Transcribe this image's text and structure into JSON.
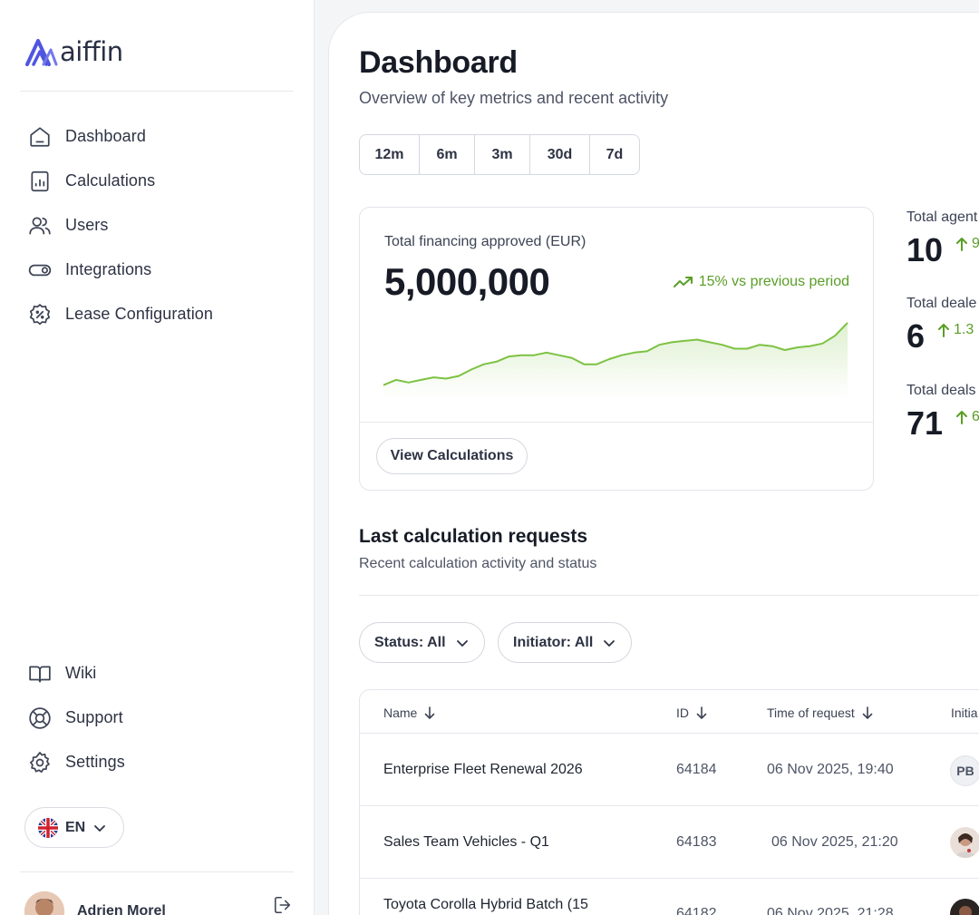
{
  "brand": {
    "name": "aiffin",
    "color": "#4f55e0"
  },
  "sidebar": {
    "nav": [
      {
        "label": "Dashboard",
        "icon": "home-icon"
      },
      {
        "label": "Calculations",
        "icon": "calculator-icon"
      },
      {
        "label": "Users",
        "icon": "users-icon"
      },
      {
        "label": "Integrations",
        "icon": "toggle-icon"
      },
      {
        "label": "Lease Configuration",
        "icon": "percent-badge-icon"
      }
    ],
    "bottom_nav": [
      {
        "label": "Wiki",
        "icon": "book-icon"
      },
      {
        "label": "Support",
        "icon": "lifebuoy-icon"
      },
      {
        "label": "Settings",
        "icon": "gear-icon"
      }
    ],
    "language": {
      "label": "EN",
      "flag": "uk-flag-icon"
    },
    "user": {
      "name": "Adrien Morel"
    }
  },
  "header": {
    "title": "Dashboard",
    "subtitle": "Overview of key metrics and recent activity"
  },
  "periods": [
    "12m",
    "6m",
    "3m",
    "30d",
    "7d"
  ],
  "financing": {
    "label": "Total financing approved (EUR)",
    "value": "5,000,000",
    "trend": "15% vs previous period",
    "button": "View Calculations",
    "accent": "#7cc242"
  },
  "chart_data": {
    "type": "area",
    "x": [
      0,
      1,
      2,
      3,
      4,
      5,
      6,
      7,
      8,
      9,
      10,
      11,
      12,
      13,
      14,
      15,
      16,
      17,
      18,
      19,
      20,
      21,
      22,
      23,
      24,
      25,
      26,
      27,
      28,
      29,
      30,
      31,
      32,
      33,
      34,
      35,
      36,
      37
    ],
    "values": [
      10,
      14,
      12,
      14,
      16,
      15,
      17,
      22,
      26,
      28,
      32,
      33,
      33,
      35,
      33,
      31,
      26,
      26,
      30,
      33,
      35,
      36,
      41,
      43,
      44,
      45,
      43,
      41,
      38,
      38,
      41,
      40,
      37,
      39,
      40,
      42,
      48,
      58
    ],
    "ylim": [
      0,
      60
    ]
  },
  "stats": [
    {
      "label": "Total agent",
      "value": "10",
      "delta": "9"
    },
    {
      "label": "Total deale",
      "value": "6",
      "delta": "1.3"
    },
    {
      "label": "Total deals",
      "value": "71",
      "delta": "6"
    }
  ],
  "requests": {
    "title": "Last calculation requests",
    "subtitle": "Recent calculation activity and status",
    "filters": [
      "Status: All",
      "Initiator: All"
    ],
    "columns": [
      "Name",
      "ID",
      "Time of request",
      "Initia"
    ],
    "rows": [
      {
        "name": "Enterprise Fleet Renewal 2026",
        "id": "64184",
        "time": "06 Nov 2025, 19:40",
        "initiator": "PB"
      },
      {
        "name": "Sales Team Vehicles - Q1",
        "id": "64183",
        "time": "06 Nov 2025, 21:20",
        "initiator": ""
      },
      {
        "name": "Toyota Corolla Hybrid Batch (15",
        "id": "64182",
        "time": "06 Nov 2025, 21:28",
        "initiator": ""
      }
    ]
  }
}
